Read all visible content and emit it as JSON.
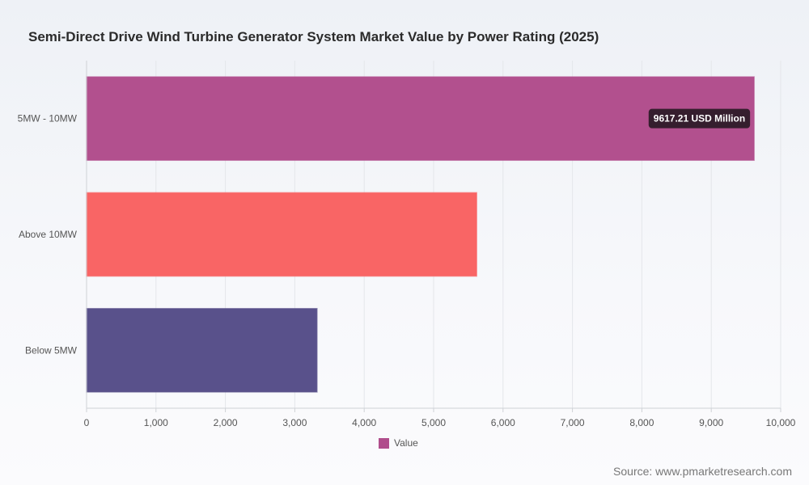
{
  "title": "Semi-Direct Drive Wind Turbine Generator System Market Value by Power Rating (2025)",
  "source": "Source: www.pmarketresearch.com",
  "legend": {
    "label": "Value",
    "color": "#b04d8c"
  },
  "chart_data": {
    "type": "bar",
    "orientation": "horizontal",
    "title": "Semi-Direct Drive Wind Turbine Generator System Market Value by Power Rating (2025)",
    "categories": [
      "5MW - 10MW",
      "Above 10MW",
      "Below 5MW"
    ],
    "series": [
      {
        "name": "Value",
        "values": [
          9617.21,
          5620,
          3320
        ]
      }
    ],
    "colors": [
      "#b04d8c",
      "#f96262",
      "#564e89"
    ],
    "xlim": [
      0,
      10000
    ],
    "xticks": [
      "0",
      "1,000",
      "2,000",
      "3,000",
      "4,000",
      "5,000",
      "6,000",
      "7,000",
      "8,000",
      "9,000",
      "10,000"
    ],
    "grid": true,
    "legend_position": "bottom",
    "annotation": {
      "category": "5MW - 10MW",
      "text": "9617.21 USD Million"
    }
  }
}
